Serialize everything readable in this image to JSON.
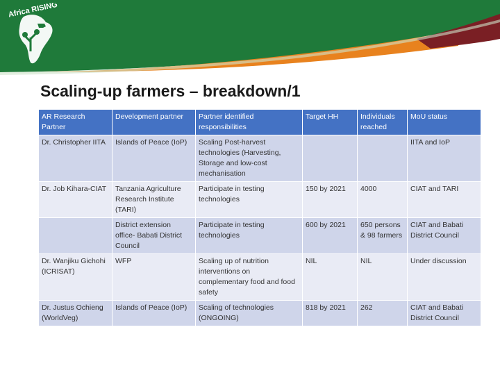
{
  "logo": {
    "text": "Africa RISING"
  },
  "slide": {
    "title": "Scaling-up farmers – breakdown/1"
  },
  "colors": {
    "banner_green": "#1f7a3a",
    "banner_orange": "#e8821e",
    "banner_maroon": "#7a1f24",
    "header_blue": "#4472c4",
    "row_dark": "#cfd5ea",
    "row_light": "#e9ebf5"
  },
  "table": {
    "headers": [
      "AR Research Partner",
      "Development partner",
      "Partner identified responsibilities",
      "Target HH",
      "Individuals reached",
      "MoU status"
    ],
    "rows": [
      [
        "Dr. Christopher IITA",
        "Islands of Peace (IoP)",
        "Scaling Post-harvest technologies (Harvesting, Storage and low-cost mechanisation",
        "",
        "",
        "IITA and IoP"
      ],
      [
        "Dr. Job Kihara-CIAT",
        " Tanzania Agriculture Research Institute (TARI)",
        "Participate in testing technologies",
        "150 by 2021",
        "4000",
        "CIAT and TARI"
      ],
      [
        "",
        "District extension office- Babati District Council",
        "Participate in testing technologies",
        "600 by 2021",
        "650 persons & 98 farmers",
        "CIAT and Babati District Council"
      ],
      [
        "Dr. Wanjiku Gichohi (ICRISAT)",
        "WFP",
        "Scaling up of nutrition interventions on complementary food and food safety",
        "NIL",
        "NIL",
        "Under discussion"
      ],
      [
        "Dr. Justus Ochieng (WorldVeg)",
        "Islands of Peace (IoP)",
        "Scaling of technologies (ONGOING)",
        "818 by 2021",
        "262",
        "CIAT and Babati District Council"
      ]
    ]
  }
}
